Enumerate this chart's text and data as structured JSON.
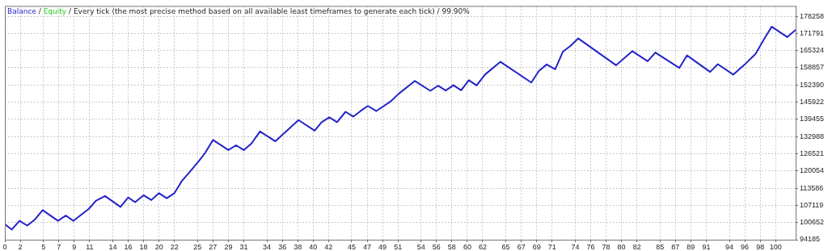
{
  "chart_data": {
    "type": "line",
    "title": "Every tick (the most precise method based on all available least timeframes to generate each tick) / 99.90%",
    "xlim": [
      0,
      102.6
    ],
    "xticks": [
      0,
      2,
      5,
      7,
      9,
      11,
      14,
      16,
      18,
      20,
      22,
      25,
      27,
      29,
      31,
      34,
      36,
      38,
      40,
      42,
      45,
      47,
      49,
      51,
      54,
      56,
      58,
      60,
      62,
      65,
      67,
      69,
      71,
      74,
      76,
      78,
      80,
      82,
      85,
      87,
      89,
      91,
      94,
      96,
      98,
      100
    ],
    "annotations": [
      "/",
      "/"
    ],
    "ylim": [
      94185,
      182100
    ],
    "yticks": [
      94185,
      100652,
      107119,
      113586,
      120054,
      126521,
      132988,
      139455,
      145922,
      152390,
      158857,
      165324,
      171791,
      178258
    ],
    "grid": true,
    "legend": "top left",
    "marker": "none",
    "line_style": "solid",
    "series": [
      {
        "name": "Balance",
        "color": "#2323c8",
        "x": [
          0,
          0.9,
          1.9,
          2.9,
          3.9,
          4.9,
          6.9,
          7.9,
          8.9,
          10.9,
          11.8,
          13,
          15,
          16,
          16.9,
          18,
          19,
          20,
          21,
          22,
          23,
          24,
          25.1,
          26,
          27,
          29,
          30,
          31,
          32,
          33.1,
          35.1,
          38.1,
          40.2,
          41.1,
          42.1,
          43.1,
          44.2,
          45.2,
          46.2,
          47.1,
          48.2,
          50.1,
          51.1,
          53.2,
          55.2,
          56.2,
          57.2,
          58.2,
          59.2,
          60.2,
          61.2,
          62.3,
          64.3,
          68.3,
          69.3,
          70.3,
          71.4,
          72.4,
          73.4,
          74.4,
          79.3,
          81.4,
          83.4,
          84.4,
          87.5,
          88.5,
          91.5,
          92.5,
          94.5,
          96,
          97.4,
          98.5,
          99.5,
          101.5,
          102.6
        ],
        "values": [
          100000,
          98000,
          101300,
          99500,
          101800,
          105300,
          101300,
          103300,
          101300,
          105800,
          108800,
          110600,
          106500,
          110100,
          108300,
          110900,
          109100,
          111700,
          109800,
          111700,
          116400,
          119700,
          123500,
          126900,
          131700,
          127900,
          129700,
          127900,
          130400,
          134900,
          131200,
          139200,
          135200,
          138400,
          140200,
          138400,
          142300,
          140500,
          142700,
          144500,
          142600,
          146300,
          149100,
          153900,
          150200,
          152100,
          150300,
          152300,
          150400,
          154200,
          152200,
          156300,
          161100,
          153300,
          157700,
          160100,
          158300,
          164900,
          167100,
          169900,
          159800,
          165100,
          161300,
          164600,
          158800,
          163500,
          157300,
          160200,
          156300,
          160100,
          164100,
          169600,
          174300,
          170400,
          173100
        ]
      },
      {
        "name": "Equity",
        "color": "#22c822"
      }
    ]
  }
}
